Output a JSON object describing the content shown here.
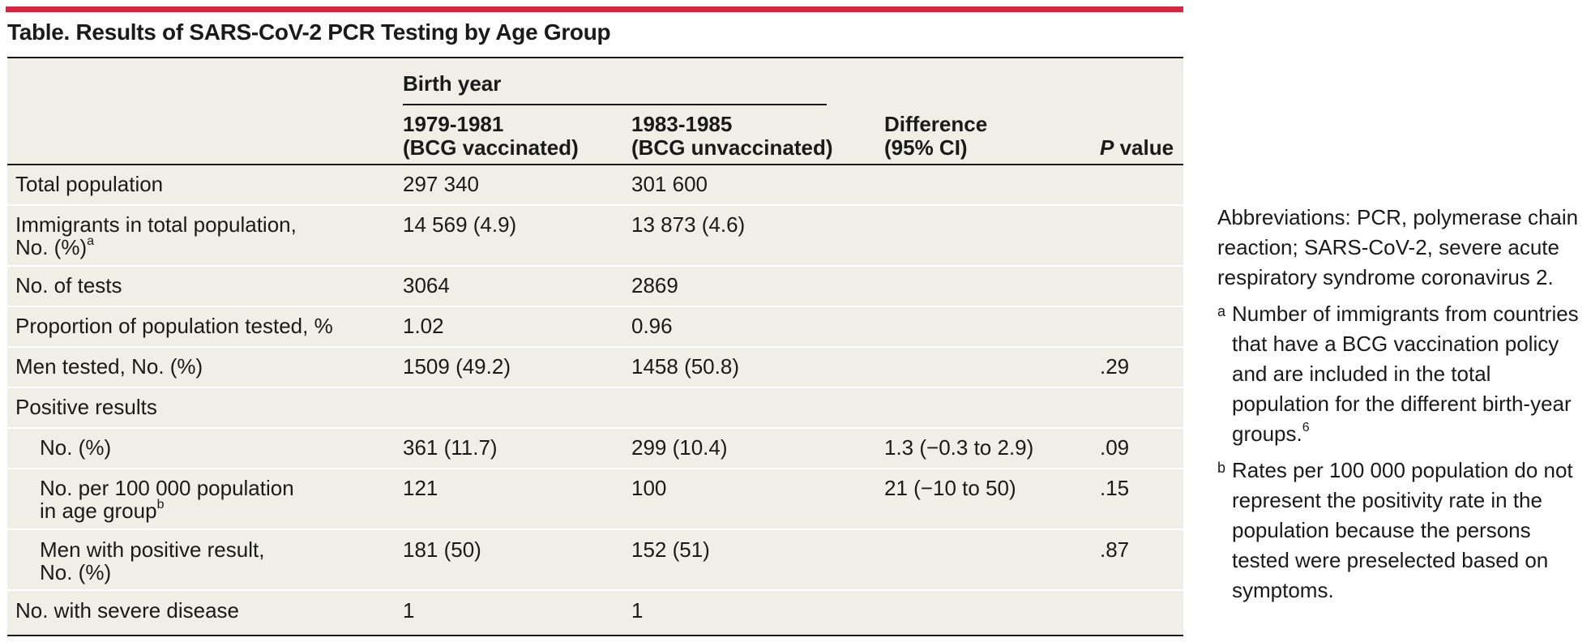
{
  "title": "Table. Results of SARS-CoV-2 PCR Testing by Age Group",
  "colors": {
    "accent_bar": "#d7263d",
    "table_bg": "#efefe7"
  },
  "header": {
    "group_label": "Birth year",
    "col1_line1": "1979-1981",
    "col1_line2": "(BCG vaccinated)",
    "col2_line1": "1983-1985",
    "col2_line2": "(BCG unvaccinated)",
    "diff_line1": "Difference",
    "diff_line2": "(95% CI)",
    "p_italic": "P",
    "p_rest": " value"
  },
  "rows": [
    {
      "label": "Total population",
      "v1": "297 340",
      "v2": "301 600",
      "diff": "",
      "p": ""
    },
    {
      "label": "Immigrants in total population,",
      "label2": "No. (%)",
      "sup": "a",
      "v1": "14 569 (4.9)",
      "v2": "13 873 (4.6)",
      "diff": "",
      "p": ""
    },
    {
      "label": "No. of tests",
      "v1": "3064",
      "v2": "2869",
      "diff": "",
      "p": ""
    },
    {
      "label": "Proportion of population tested, %",
      "v1": "1.02",
      "v2": "0.96",
      "diff": "",
      "p": ""
    },
    {
      "label": "Men tested, No. (%)",
      "v1": "1509 (49.2)",
      "v2": "1458 (50.8)",
      "diff": "",
      "p": ".29"
    },
    {
      "label": "Positive results",
      "v1": "",
      "v2": "",
      "diff": "",
      "p": ""
    },
    {
      "label": "No. (%)",
      "v1": "361 (11.7)",
      "v2": "299 (10.4)",
      "diff": "1.3 (−0.3 to 2.9)",
      "p": ".09"
    },
    {
      "label": "No. per 100 000 population",
      "label2": "in age group",
      "sup": "b",
      "v1": "121",
      "v2": "100",
      "diff": "21 (−10 to 50)",
      "p": ".15"
    },
    {
      "label": "Men with positive result,",
      "label2": "No. (%)",
      "v1": "181 (50)",
      "v2": "152 (51)",
      "diff": "",
      "p": ".87"
    },
    {
      "label": "No. with severe disease",
      "v1": "1",
      "v2": "1",
      "diff": "",
      "p": ""
    }
  ],
  "notes": {
    "abbrev": "Abbreviations: PCR, polymerase chain reaction; SARS-CoV-2, severe acute respiratory syndrome coronavirus 2.",
    "fn_a_mark": "a",
    "fn_a_text": "Number of immigrants from countries that have a BCG vaccination policy and are included in the total population for the different birth-year groups.",
    "fn_a_ref": "6",
    "fn_b_mark": "b",
    "fn_b_text": "Rates per 100 000 population do not represent the positivity rate in the population because the persons tested were preselected based on symptoms."
  }
}
